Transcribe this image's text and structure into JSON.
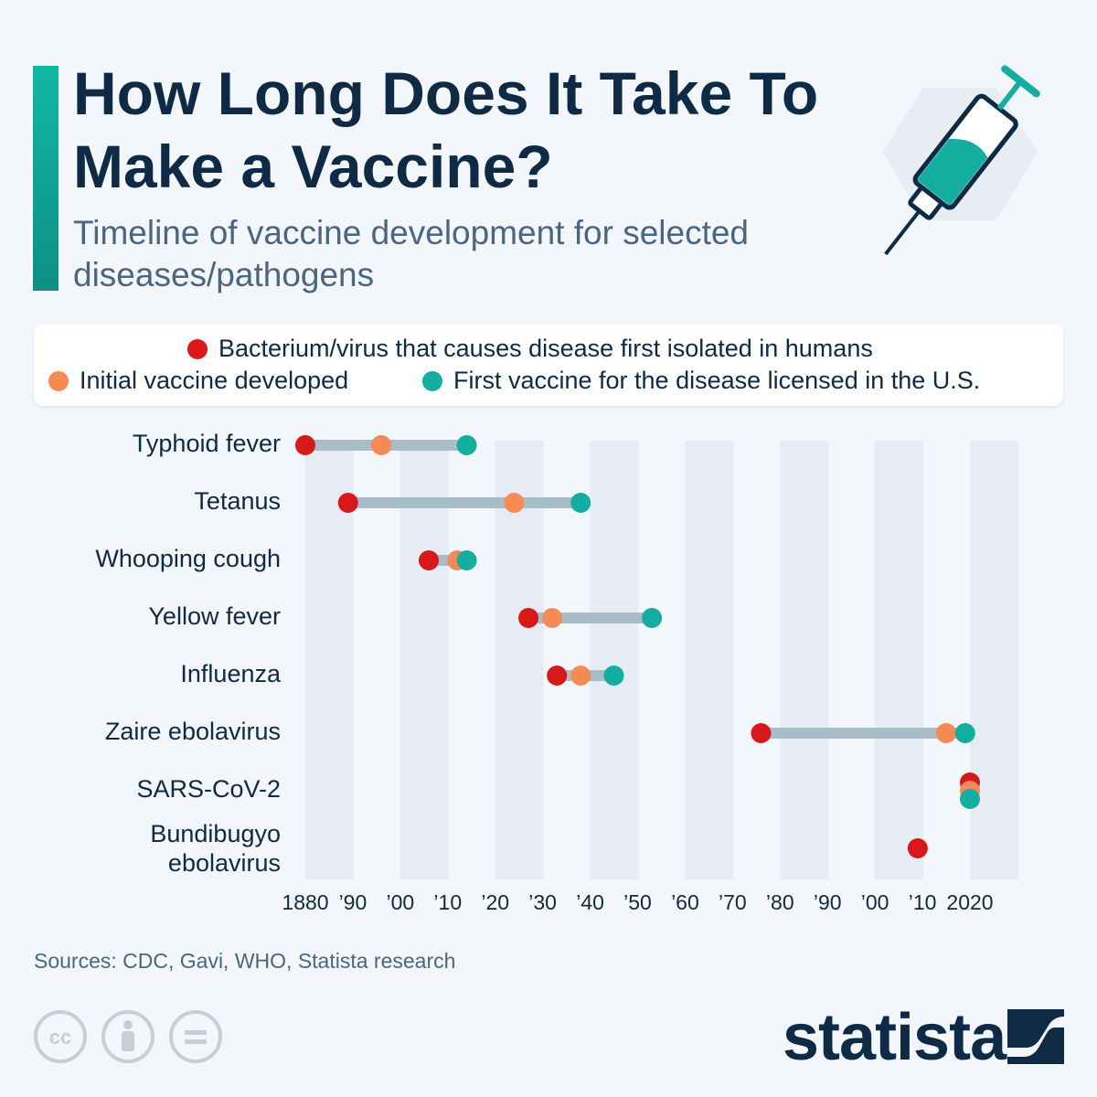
{
  "header": {
    "title": "How Long Does It Take To Make a Vaccine?",
    "subtitle": "Timeline of vaccine development for selected diseases/pathogens"
  },
  "legend": {
    "isolated": "Bacterium/virus that causes disease first isolated in humans",
    "initial": "Initial vaccine developed",
    "licensed": "First vaccine for the disease licensed in the U.S."
  },
  "colors": {
    "isolated": "#d7191c",
    "initial": "#f58a54",
    "licensed": "#14aea0",
    "connector": "#a9bdc8",
    "band": "#e7ecf4"
  },
  "chart_data": {
    "type": "scatter",
    "title": "How Long Does It Take To Make a Vaccine?",
    "xlim": [
      1880,
      2020
    ],
    "x_ticks": [
      1880,
      1890,
      1900,
      1910,
      1920,
      1930,
      1940,
      1950,
      1960,
      1970,
      1980,
      1990,
      2000,
      2010,
      2020
    ],
    "x_tick_labels": [
      "1880",
      "’90",
      "’00",
      "’10",
      "’20",
      "’30",
      "’40",
      "’50",
      "’60",
      "’70",
      "’80",
      "’90",
      "’00",
      "’10",
      "2020"
    ],
    "rows": [
      {
        "label": "Typhoid fever",
        "isolated": 1880,
        "initial": 1896,
        "licensed": 1914
      },
      {
        "label": "Tetanus",
        "isolated": 1889,
        "initial": 1924,
        "licensed": 1938
      },
      {
        "label": "Whooping cough",
        "isolated": 1906,
        "initial": 1912,
        "licensed": 1914
      },
      {
        "label": "Yellow fever",
        "isolated": 1927,
        "initial": 1932,
        "licensed": 1953
      },
      {
        "label": "Influenza",
        "isolated": 1933,
        "initial": 1938,
        "licensed": 1945
      },
      {
        "label": "Zaire ebolavirus",
        "isolated": 1976,
        "initial": 2015,
        "licensed": 2019
      },
      {
        "label": "SARS-CoV-2",
        "isolated": 2020,
        "initial": 2020,
        "licensed": 2020
      },
      {
        "label": "Bundibugyo ebolavirus",
        "isolated": 2009,
        "initial": null,
        "licensed": null
      }
    ],
    "series": [
      {
        "name": "Bacterium/virus that causes disease first isolated in humans",
        "key": "isolated"
      },
      {
        "name": "Initial vaccine developed",
        "key": "initial"
      },
      {
        "name": "First vaccine for the disease licensed in the U.S.",
        "key": "licensed"
      }
    ],
    "grid": "alternating vertical bands",
    "legend_position": "top"
  },
  "footer": {
    "source": "Sources: CDC, Gavi, WHO, Statista research",
    "brand": "statista",
    "license_icons": [
      "cc-icon",
      "attribution-icon",
      "no-derivatives-icon"
    ]
  }
}
